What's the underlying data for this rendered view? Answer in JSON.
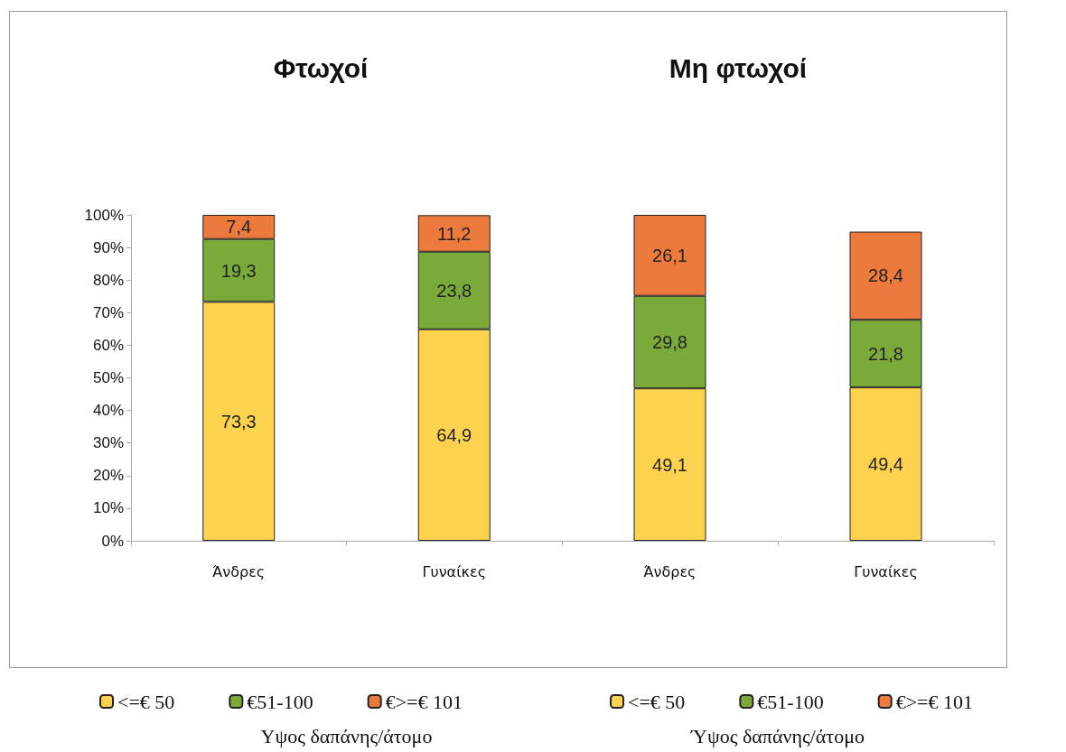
{
  "chart_data": [
    {
      "type": "bar",
      "title": "Φτωχοί",
      "categories": [
        "Άνδρες",
        "Γυναίκες"
      ],
      "stacked": true,
      "legend": "bottom",
      "xlabel": "Υψος δαπάνης/άτομο",
      "ylim": [
        0,
        100
      ],
      "yticks": [
        {
          "value": 0,
          "label": "0%"
        },
        {
          "value": 10,
          "label": "10%"
        },
        {
          "value": 20,
          "label": "20%"
        },
        {
          "value": 30,
          "label": "30%"
        },
        {
          "value": 40,
          "label": "40%"
        },
        {
          "value": 50,
          "label": "50%"
        },
        {
          "value": 60,
          "label": "60%"
        },
        {
          "value": 70,
          "label": "70%"
        },
        {
          "value": 80,
          "label": "80%"
        },
        {
          "value": 90,
          "label": "90%"
        },
        {
          "value": 100,
          "label": "100%"
        }
      ],
      "series": [
        {
          "name": "<=€ 50",
          "color": "#fdd24f",
          "values": [
            73.3,
            64.9
          ],
          "value_labels": [
            "73,3",
            "64,9"
          ]
        },
        {
          "name": "€51-100",
          "color": "#7aab3a",
          "values": [
            19.3,
            23.8
          ],
          "value_labels": [
            "19,3",
            "23,8"
          ]
        },
        {
          "name": "€>=€ 101",
          "color": "#ec7a3c",
          "values": [
            7.4,
            11.2
          ],
          "value_labels": [
            "7,4",
            "11,2"
          ]
        }
      ]
    },
    {
      "type": "bar",
      "title": "Μη φτωχοί",
      "categories": [
        "Άνδρες",
        "Γυναίκες"
      ],
      "stacked": true,
      "legend": "bottom",
      "xlabel": "Ύψος δαπάνης/άτομο",
      "ylim": [
        0,
        105
      ],
      "tick_labels": "x",
      "series": [
        {
          "name": "<=€ 50",
          "color": "#fdd24f",
          "values": [
            49.1,
            49.4
          ],
          "value_labels": [
            "49,1",
            "49,4"
          ]
        },
        {
          "name": "€51-100",
          "color": "#7aab3a",
          "values": [
            29.8,
            21.8
          ],
          "value_labels": [
            "29,8",
            "21,8"
          ]
        },
        {
          "name": "€>=€ 101",
          "color": "#ec7a3c",
          "values": [
            26.1,
            28.4
          ],
          "value_labels": [
            "26,1",
            "28,4"
          ]
        }
      ]
    }
  ]
}
